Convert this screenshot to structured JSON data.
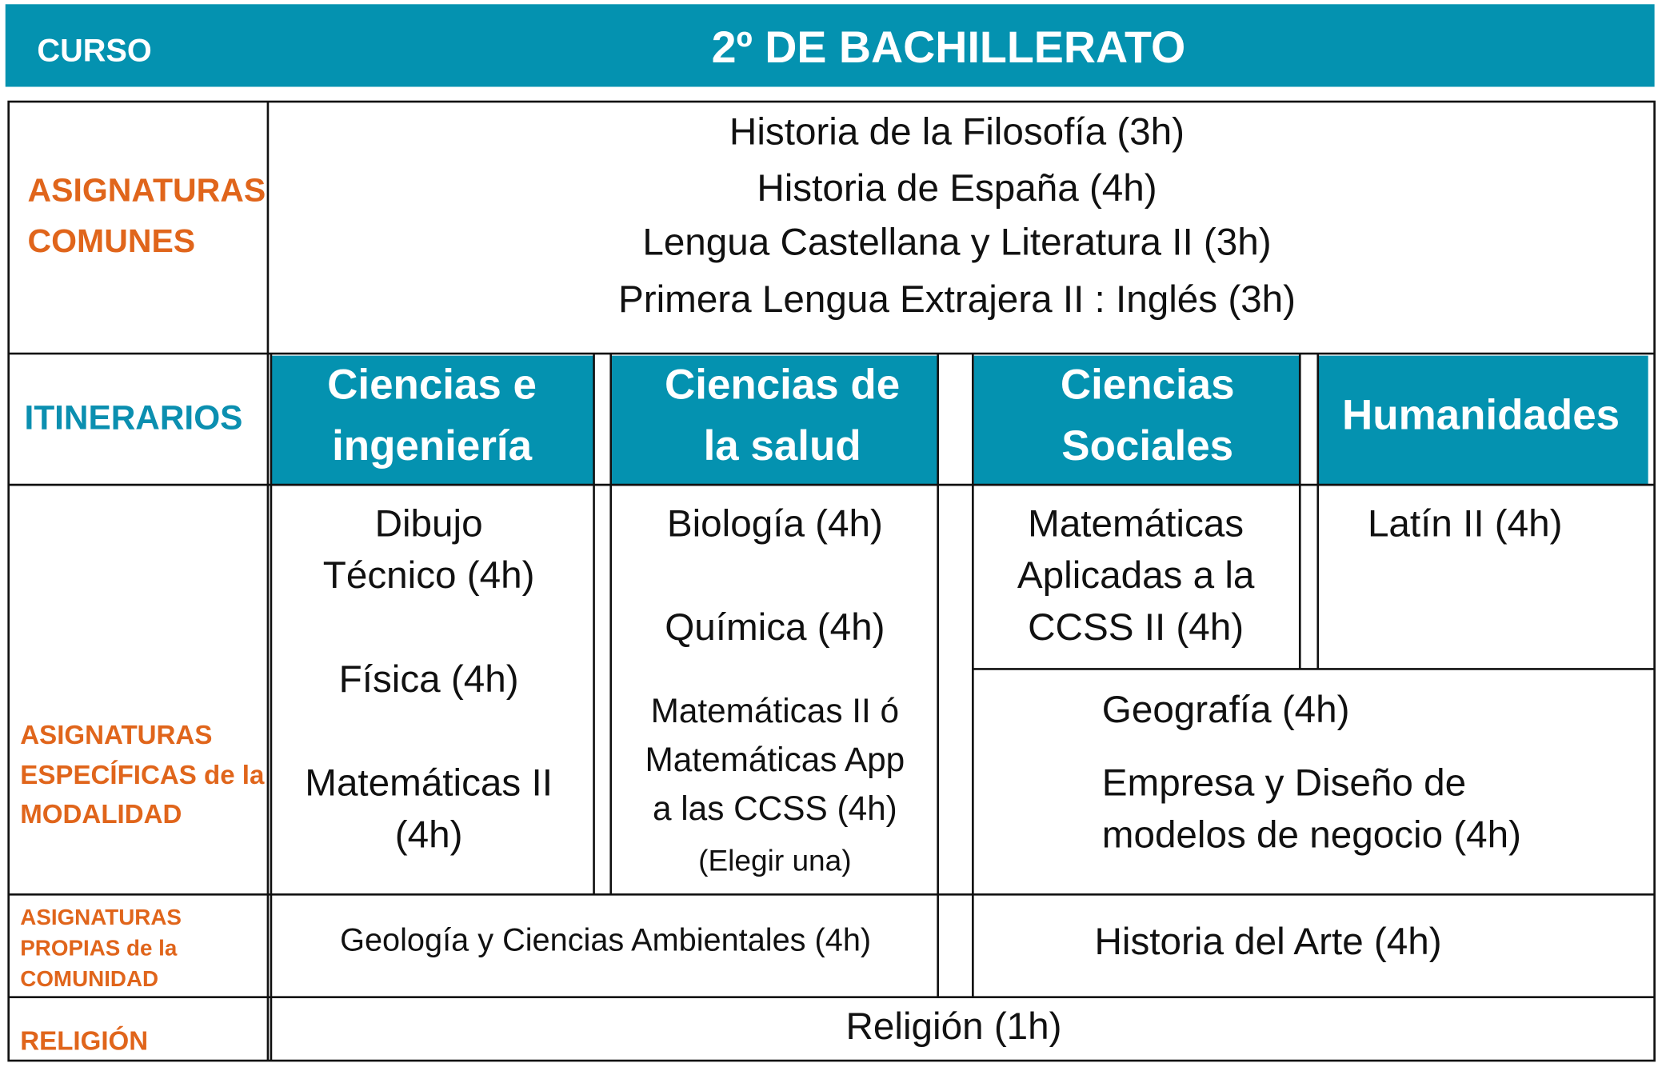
{
  "header": {
    "label": "CURSO",
    "title": "2º DE BACHILLERATO"
  },
  "comunes": {
    "label": [
      "ASIGNATURAS",
      "COMUNES"
    ],
    "subjects": [
      "Historia de la Filosofía (3h)",
      "Historia de España (4h)",
      "Lengua Castellana y Literatura II (3h)",
      "Primera Lengua Extrajera II : Inglés (3h)"
    ]
  },
  "itinerarios": {
    "label": "ITINERARIOS",
    "columns": [
      [
        "Ciencias e",
        "ingeniería"
      ],
      [
        "Ciencias de",
        "la salud"
      ],
      [
        "Ciencias",
        "Sociales"
      ],
      [
        "Humanidades"
      ]
    ]
  },
  "especificas": {
    "label": [
      "ASIGNATURAS",
      "ESPECÍFICAS de la",
      "MODALIDAD"
    ],
    "ciencias_ingenieria": [
      "Dibujo",
      "Técnico (4h)",
      "Física (4h)",
      "Matemáticas II",
      "(4h)"
    ],
    "ciencias_salud": [
      "Biología (4h)",
      "Química (4h)",
      "Matemáticas  II ó",
      "Matemáticas App",
      "a las CCSS (4h)",
      "(Elegir una)"
    ],
    "ciencias_sociales": [
      "Matemáticas",
      "Aplicadas a la",
      "CCSS II (4h)"
    ],
    "humanidades": [
      "Latín II (4h)"
    ],
    "sociales_humanidades": [
      "Geografía (4h)",
      "Empresa y Diseño de",
      "modelos de negocio (4h)"
    ]
  },
  "propias": {
    "label": [
      "ASIGNATURAS",
      "PROPIAS de la",
      "COMUNIDAD"
    ],
    "ciencias": "Geología y Ciencias Ambientales  (4h)",
    "sociales_humanidades": "Historia del Arte (4h)"
  },
  "religion": {
    "label": "RELIGIÓN",
    "subject": "Religión (1h)"
  }
}
